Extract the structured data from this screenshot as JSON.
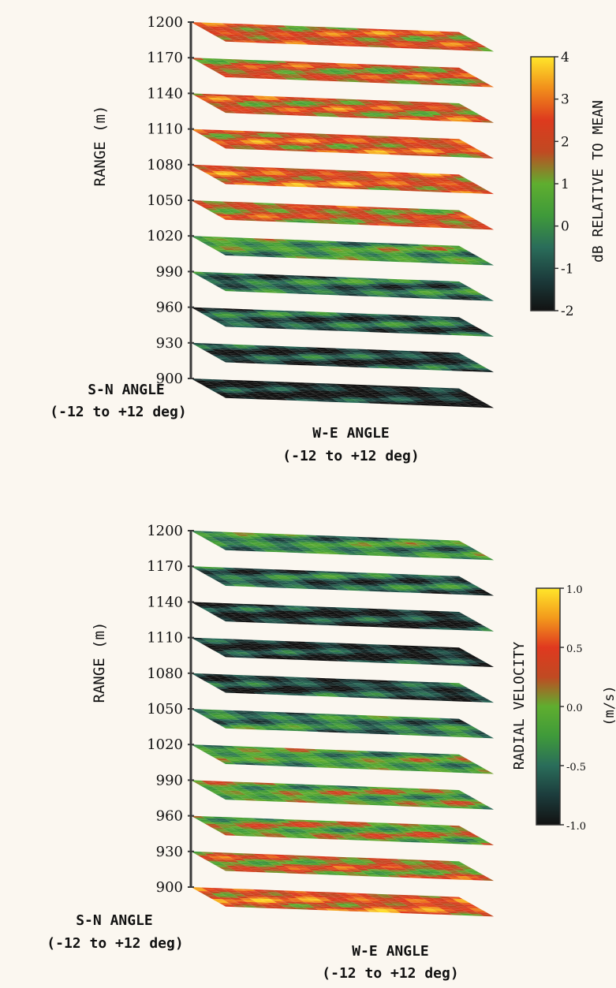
{
  "colors": {
    "background": "#fbf7f0",
    "axis": "#3a3a3a",
    "reflectivity_ramp": [
      "#121212",
      "#1c3c3c",
      "#2a6d5a",
      "#3f9a3a",
      "#5fae2f",
      "#c04a22",
      "#dd3a1e",
      "#f18e1b",
      "#ffe62a"
    ],
    "velocity_ramp": [
      "#121212",
      "#1c3c3c",
      "#2a6d5a",
      "#3f9a3a",
      "#5fae2f",
      "#c04a22",
      "#e0391f",
      "#f39a1c",
      "#ffe62a"
    ]
  },
  "chart_data": [
    {
      "type": "heatmap",
      "panel": "top",
      "ylabel": "RANGE (m)",
      "range_ticks": [
        "1200",
        "1170",
        "1140",
        "1110",
        "1080",
        "1050",
        "1020",
        "990",
        "960",
        "930",
        "900"
      ],
      "x_label": "S-N ANGLE",
      "x_range_label": "(-12 to +12 deg)",
      "z_label": "W-E ANGLE",
      "z_range_label": "(-12 to +12 deg)",
      "colorbar_label": "dB RELATIVE TO MEAN",
      "colorbar_ticks": [
        "4",
        "3",
        "2",
        "1",
        "0",
        "-1",
        "-2"
      ],
      "colorbar_range": [
        -2,
        4
      ],
      "slices": [
        {
          "range": 1200,
          "mean": 2.1
        },
        {
          "range": 1170,
          "mean": 1.8
        },
        {
          "range": 1140,
          "mean": 2.0
        },
        {
          "range": 1110,
          "mean": 2.2
        },
        {
          "range": 1080,
          "mean": 2.3
        },
        {
          "range": 1050,
          "mean": 1.8
        },
        {
          "range": 1020,
          "mean": 0.3
        },
        {
          "range": 990,
          "mean": -0.6
        },
        {
          "range": 960,
          "mean": -0.9
        },
        {
          "range": 930,
          "mean": -1.3
        },
        {
          "range": 900,
          "mean": -1.8
        }
      ]
    },
    {
      "type": "heatmap",
      "panel": "bottom",
      "ylabel": "RANGE (m)",
      "range_ticks": [
        "1200",
        "1170",
        "1140",
        "1110",
        "1080",
        "1050",
        "1020",
        "990",
        "960",
        "930",
        "900"
      ],
      "x_label": "S-N ANGLE",
      "x_range_label": "(-12 to +12 deg)",
      "z_label": "W-E ANGLE",
      "z_range_label": "(-12 to +12 deg)",
      "colorbar_label": "RADIAL VELOCITY",
      "colorbar_unit": "(m/s)",
      "colorbar_ticks": [
        "1.0",
        "0.5",
        "0.0",
        "-0.5",
        "-1.0"
      ],
      "colorbar_range": [
        -1.0,
        1.0
      ],
      "slices": [
        {
          "range": 1200,
          "mean": -0.35
        },
        {
          "range": 1170,
          "mean": -0.6
        },
        {
          "range": 1140,
          "mean": -0.85
        },
        {
          "range": 1110,
          "mean": -0.85
        },
        {
          "range": 1080,
          "mean": -0.75
        },
        {
          "range": 1050,
          "mean": -0.45
        },
        {
          "range": 1020,
          "mean": -0.2
        },
        {
          "range": 990,
          "mean": -0.1
        },
        {
          "range": 960,
          "mean": 0.0
        },
        {
          "range": 930,
          "mean": 0.2
        },
        {
          "range": 900,
          "mean": 0.45
        }
      ]
    }
  ]
}
